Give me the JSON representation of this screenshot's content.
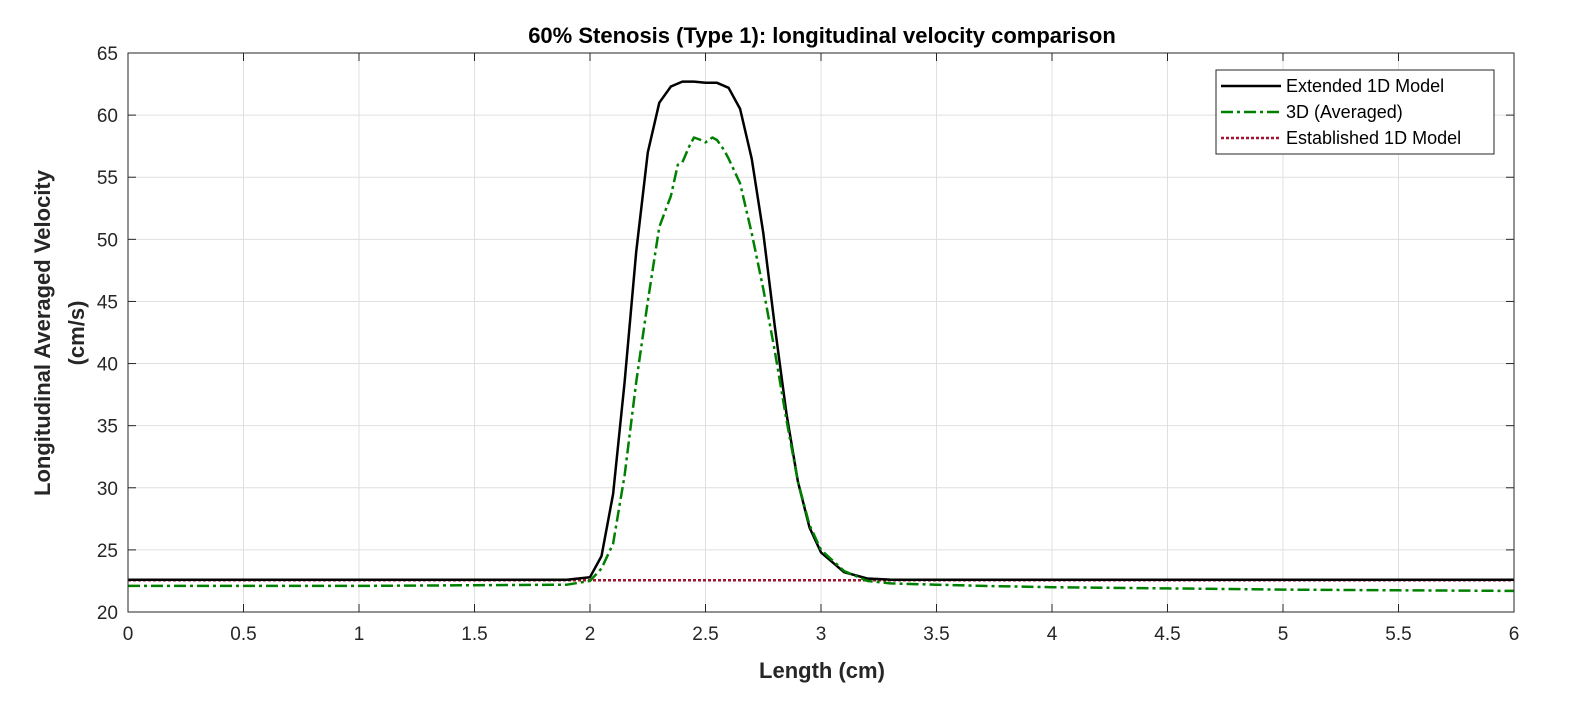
{
  "chart_data": {
    "type": "line",
    "title": "60% Stenosis (Type 1): longitudinal velocity comparison",
    "xlabel": "Length (cm)",
    "ylabel_lines": [
      "Longitudinal Averaged Velocity",
      "(cm/s)"
    ],
    "xlim": [
      0,
      6
    ],
    "ylim": [
      20,
      65
    ],
    "xticks": [
      0,
      0.5,
      1,
      1.5,
      2,
      2.5,
      3,
      3.5,
      4,
      4.5,
      5,
      5.5,
      6
    ],
    "xtick_labels": [
      "0",
      "0.5",
      "1",
      "1.5",
      "2",
      "2.5",
      "3",
      "3.5",
      "4",
      "4.5",
      "5",
      "5.5",
      "6"
    ],
    "yticks": [
      20,
      25,
      30,
      35,
      40,
      45,
      50,
      55,
      60,
      65
    ],
    "ytick_labels": [
      "20",
      "25",
      "30",
      "35",
      "40",
      "45",
      "50",
      "55",
      "60",
      "65"
    ],
    "grid": true,
    "legend_position": "top-right",
    "series": [
      {
        "name": "Extended 1D Model",
        "color": "#000000",
        "style": "solid",
        "x": [
          0,
          1,
          1.9,
          2.0,
          2.05,
          2.1,
          2.15,
          2.2,
          2.25,
          2.3,
          2.35,
          2.4,
          2.45,
          2.5,
          2.55,
          2.6,
          2.65,
          2.7,
          2.75,
          2.8,
          2.85,
          2.9,
          2.95,
          3.0,
          3.1,
          3.2,
          3.3,
          3.5,
          4.0,
          5.0,
          6.0
        ],
        "y": [
          22.6,
          22.6,
          22.6,
          22.8,
          24.5,
          29.5,
          38.5,
          49.0,
          57.0,
          61.0,
          62.3,
          62.7,
          62.7,
          62.6,
          62.6,
          62.2,
          60.5,
          56.5,
          50.5,
          43.0,
          36.0,
          30.5,
          26.8,
          24.8,
          23.2,
          22.7,
          22.6,
          22.6,
          22.6,
          22.6,
          22.6
        ]
      },
      {
        "name": "3D (Averaged)",
        "color": "#008000",
        "style": "dashdot",
        "x": [
          0,
          1,
          1.9,
          2.0,
          2.05,
          2.1,
          2.15,
          2.2,
          2.25,
          2.3,
          2.35,
          2.38,
          2.4,
          2.43,
          2.45,
          2.48,
          2.5,
          2.53,
          2.55,
          2.58,
          2.6,
          2.65,
          2.7,
          2.75,
          2.8,
          2.85,
          2.9,
          2.95,
          3.0,
          3.1,
          3.2,
          3.3,
          3.5,
          3.7,
          4.0,
          4.5,
          5.0,
          5.5,
          6.0
        ],
        "y": [
          22.1,
          22.1,
          22.2,
          22.5,
          23.5,
          25.5,
          31.0,
          38.5,
          45.0,
          51.0,
          53.5,
          56.0,
          56.2,
          57.5,
          58.2,
          58.0,
          57.8,
          58.2,
          58.0,
          57.2,
          56.5,
          54.5,
          50.5,
          46.0,
          41.0,
          35.5,
          30.5,
          27.0,
          25.0,
          23.3,
          22.5,
          22.3,
          22.2,
          22.1,
          22.0,
          21.9,
          21.8,
          21.75,
          21.7
        ]
      },
      {
        "name": "Established 1D Model",
        "color": "#A2142F",
        "style": "dotted",
        "x": [
          0,
          6
        ],
        "y": [
          22.55,
          22.55
        ]
      }
    ]
  }
}
